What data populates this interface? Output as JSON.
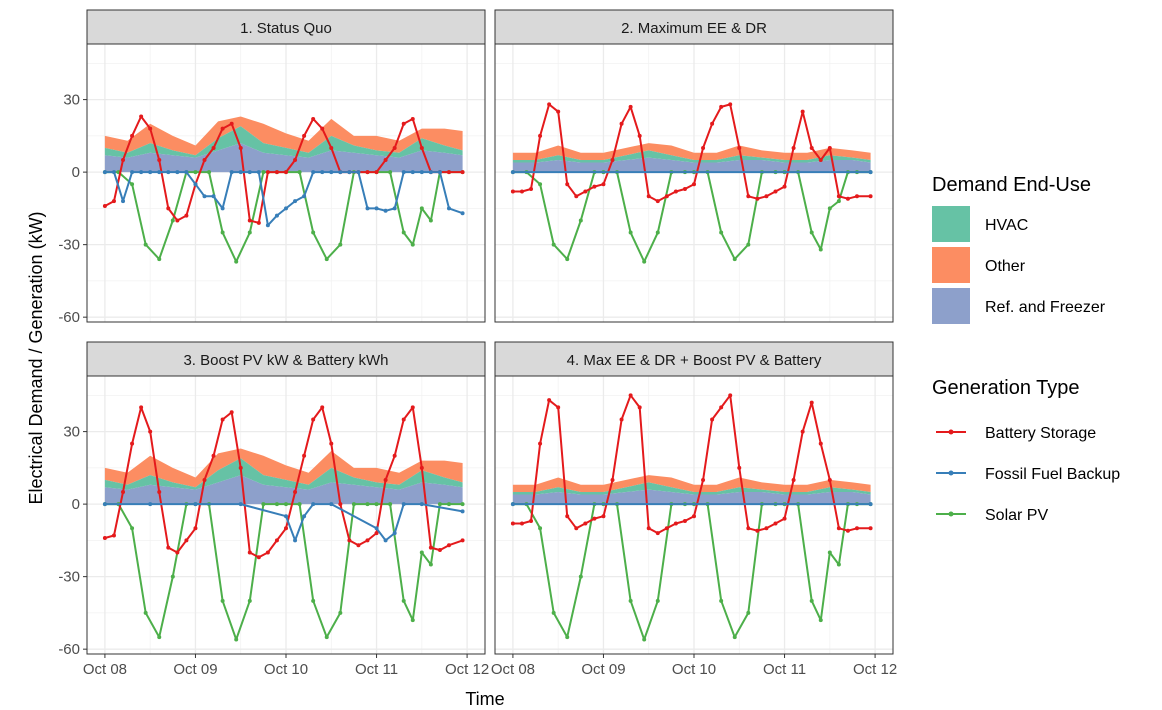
{
  "chart_data": {
    "type": "area",
    "xlabel": "Time",
    "ylabel": "Electrical Demand / Generation (kW)",
    "x_ticks": [
      "Oct 08",
      "Oct 09",
      "Oct 10",
      "Oct 11",
      "Oct 12"
    ],
    "x_range": [
      0,
      4
    ],
    "y_ticks": [
      -60,
      -30,
      0,
      30
    ],
    "ylim": [
      -62,
      53
    ],
    "grid": true,
    "legend_placement": "right",
    "legends": {
      "demand": {
        "title": "Demand End-Use",
        "items": [
          {
            "label": "HVAC",
            "color": "#66C2A5"
          },
          {
            "label": "Other",
            "color": "#FC8D62"
          },
          {
            "label": "Ref. and Freezer",
            "color": "#8DA0CB"
          }
        ]
      },
      "generation": {
        "title": "Generation Type",
        "items": [
          {
            "label": "Battery Storage",
            "color": "#E41A1C"
          },
          {
            "label": "Fossil Fuel Backup",
            "color": "#377EB8"
          },
          {
            "label": "Solar PV",
            "color": "#4DAF4A"
          }
        ]
      }
    },
    "panels": [
      {
        "title": "1. Status Quo",
        "demand": {
          "x": [
            0,
            0.25,
            0.5,
            0.75,
            1,
            1.25,
            1.5,
            1.75,
            2,
            2.25,
            2.5,
            2.75,
            3,
            3.25,
            3.5,
            3.75,
            3.95
          ],
          "ref": [
            7,
            6,
            8,
            7,
            6,
            9,
            12,
            8,
            7,
            6,
            9,
            8,
            7,
            6,
            9,
            8,
            7
          ],
          "hvac": [
            3,
            2,
            4,
            2,
            1,
            5,
            7,
            4,
            3,
            2,
            6,
            3,
            2,
            2,
            5,
            3,
            2
          ],
          "other": [
            5,
            5,
            8,
            6,
            4,
            7,
            4,
            8,
            6,
            5,
            7,
            4,
            6,
            5,
            4,
            7,
            8
          ]
        },
        "solar": {
          "x": [
            0,
            0.15,
            0.3,
            0.45,
            0.6,
            0.75,
            0.9,
            1.0,
            1.15,
            1.3,
            1.45,
            1.6,
            1.75,
            1.9,
            2.0,
            2.15,
            2.3,
            2.45,
            2.6,
            2.75,
            2.9,
            3.0,
            3.15,
            3.3,
            3.4,
            3.5,
            3.6,
            3.7,
            3.8,
            3.95
          ],
          "y": [
            0,
            0,
            -5,
            -30,
            -36,
            -20,
            0,
            0,
            0,
            -25,
            -37,
            -25,
            0,
            0,
            0,
            0,
            -25,
            -36,
            -30,
            0,
            0,
            0,
            0,
            -25,
            -30,
            -15,
            -20,
            0,
            0,
            0
          ]
        },
        "battery": {
          "x": [
            0,
            0.1,
            0.2,
            0.3,
            0.4,
            0.5,
            0.6,
            0.7,
            0.8,
            0.9,
            1.0,
            1.1,
            1.2,
            1.3,
            1.4,
            1.5,
            1.6,
            1.7,
            1.8,
            1.9,
            2.0,
            2.1,
            2.2,
            2.3,
            2.4,
            2.5,
            2.6,
            2.7,
            2.8,
            2.9,
            3.0,
            3.1,
            3.2,
            3.3,
            3.4,
            3.5,
            3.6,
            3.7,
            3.8,
            3.95
          ],
          "y": [
            -14,
            -12,
            5,
            15,
            23,
            18,
            5,
            -15,
            -20,
            -18,
            -5,
            5,
            10,
            18,
            20,
            10,
            -20,
            -21,
            0,
            0,
            0,
            5,
            15,
            22,
            18,
            10,
            0,
            0,
            0,
            0,
            0,
            5,
            10,
            20,
            22,
            10,
            0,
            0,
            0,
            0
          ]
        },
        "fossil": {
          "x": [
            0,
            0.1,
            0.2,
            0.3,
            0.4,
            0.5,
            0.6,
            0.7,
            0.8,
            0.9,
            1.0,
            1.1,
            1.2,
            1.3,
            1.4,
            1.5,
            1.6,
            1.7,
            1.8,
            1.9,
            2.0,
            2.1,
            2.2,
            2.3,
            2.4,
            2.5,
            2.6,
            2.7,
            2.8,
            2.9,
            3.0,
            3.1,
            3.2,
            3.3,
            3.4,
            3.5,
            3.6,
            3.7,
            3.8,
            3.95
          ],
          "y": [
            0,
            0,
            -12,
            0,
            0,
            0,
            0,
            0,
            0,
            0,
            -5,
            -10,
            -10,
            -15,
            0,
            0,
            0,
            0,
            -22,
            -18,
            -15,
            -12,
            -10,
            0,
            0,
            0,
            0,
            0,
            0,
            -15,
            -15,
            -16,
            -15,
            0,
            0,
            0,
            0,
            0,
            -15,
            -17
          ]
        }
      },
      {
        "title": "2. Maximum EE & DR",
        "demand": {
          "x": [
            0,
            0.25,
            0.5,
            0.75,
            1,
            1.25,
            1.5,
            1.75,
            2,
            2.25,
            2.5,
            2.75,
            3,
            3.25,
            3.5,
            3.75,
            3.95
          ],
          "ref": [
            4,
            4,
            5,
            4,
            4,
            5,
            6,
            5,
            4,
            4,
            5,
            5,
            4,
            4,
            5,
            5,
            4
          ],
          "hvac": [
            1,
            1,
            2,
            1,
            1,
            2,
            3,
            2,
            1,
            1,
            2,
            1,
            1,
            1,
            2,
            1,
            1
          ],
          "other": [
            3,
            3,
            4,
            3,
            3,
            3,
            3,
            4,
            3,
            3,
            4,
            3,
            3,
            3,
            3,
            3,
            3
          ]
        },
        "solar": {
          "x": [
            0,
            0.15,
            0.3,
            0.45,
            0.6,
            0.75,
            0.9,
            1.0,
            1.15,
            1.3,
            1.45,
            1.6,
            1.75,
            1.9,
            2.0,
            2.15,
            2.3,
            2.45,
            2.6,
            2.75,
            2.9,
            3.0,
            3.15,
            3.3,
            3.4,
            3.5,
            3.6,
            3.7,
            3.8,
            3.95
          ],
          "y": [
            0,
            0,
            -5,
            -30,
            -36,
            -20,
            0,
            0,
            0,
            -25,
            -37,
            -25,
            0,
            0,
            0,
            0,
            -25,
            -36,
            -30,
            0,
            0,
            0,
            0,
            -25,
            -32,
            -15,
            -12,
            0,
            0,
            0
          ]
        },
        "battery": {
          "x": [
            0,
            0.1,
            0.2,
            0.3,
            0.4,
            0.5,
            0.6,
            0.7,
            0.8,
            0.9,
            1.0,
            1.1,
            1.2,
            1.3,
            1.4,
            1.5,
            1.6,
            1.7,
            1.8,
            1.9,
            2.0,
            2.1,
            2.2,
            2.3,
            2.4,
            2.5,
            2.6,
            2.7,
            2.8,
            2.9,
            3.0,
            3.1,
            3.2,
            3.3,
            3.4,
            3.5,
            3.6,
            3.7,
            3.8,
            3.95
          ],
          "y": [
            -8,
            -8,
            -7,
            15,
            28,
            25,
            -5,
            -10,
            -8,
            -6,
            -5,
            5,
            20,
            27,
            15,
            -10,
            -12,
            -10,
            -8,
            -7,
            -5,
            10,
            20,
            27,
            28,
            10,
            -10,
            -11,
            -10,
            -8,
            -6,
            10,
            25,
            10,
            5,
            10,
            -10,
            -11,
            -10,
            -10
          ]
        },
        "fossil": {
          "x": [
            0,
            3.95
          ],
          "y": [
            0,
            0
          ]
        }
      },
      {
        "title": "3. Boost PV kW & Battery kWh",
        "demand": {
          "x": [
            0,
            0.25,
            0.5,
            0.75,
            1,
            1.25,
            1.5,
            1.75,
            2,
            2.25,
            2.5,
            2.75,
            3,
            3.25,
            3.5,
            3.75,
            3.95
          ],
          "ref": [
            7,
            6,
            8,
            7,
            6,
            9,
            12,
            8,
            7,
            6,
            9,
            8,
            7,
            6,
            9,
            8,
            7
          ],
          "hvac": [
            3,
            2,
            4,
            2,
            1,
            5,
            7,
            4,
            3,
            2,
            6,
            3,
            2,
            2,
            5,
            3,
            2
          ],
          "other": [
            5,
            5,
            8,
            6,
            4,
            7,
            4,
            8,
            6,
            5,
            7,
            4,
            6,
            5,
            4,
            7,
            8
          ]
        },
        "solar": {
          "x": [
            0,
            0.15,
            0.3,
            0.45,
            0.6,
            0.75,
            0.9,
            1.0,
            1.15,
            1.3,
            1.45,
            1.6,
            1.75,
            1.9,
            2.0,
            2.15,
            2.3,
            2.45,
            2.6,
            2.75,
            2.9,
            3.0,
            3.15,
            3.3,
            3.4,
            3.5,
            3.6,
            3.7,
            3.8,
            3.95
          ],
          "y": [
            0,
            0,
            -10,
            -45,
            -55,
            -30,
            0,
            0,
            0,
            -40,
            -56,
            -40,
            0,
            0,
            0,
            0,
            -40,
            -55,
            -45,
            0,
            0,
            0,
            0,
            -40,
            -48,
            -20,
            -25,
            0,
            0,
            0
          ]
        },
        "battery": {
          "x": [
            0,
            0.1,
            0.2,
            0.3,
            0.4,
            0.5,
            0.6,
            0.7,
            0.8,
            0.9,
            1.0,
            1.1,
            1.2,
            1.3,
            1.4,
            1.5,
            1.6,
            1.7,
            1.8,
            1.9,
            2.0,
            2.1,
            2.2,
            2.3,
            2.4,
            2.5,
            2.6,
            2.7,
            2.8,
            2.9,
            3.0,
            3.1,
            3.2,
            3.3,
            3.4,
            3.5,
            3.6,
            3.7,
            3.8,
            3.95
          ],
          "y": [
            -14,
            -13,
            5,
            25,
            40,
            30,
            5,
            -18,
            -20,
            -15,
            -10,
            10,
            20,
            35,
            38,
            15,
            -20,
            -22,
            -20,
            -15,
            -10,
            5,
            20,
            35,
            40,
            25,
            0,
            -15,
            -17,
            -15,
            -12,
            10,
            20,
            35,
            40,
            15,
            -18,
            -19,
            -17,
            -15
          ]
        },
        "fossil": {
          "x": [
            0,
            0.5,
            1.0,
            1.5,
            2.0,
            2.1,
            2.2,
            2.3,
            2.5,
            3.0,
            3.1,
            3.2,
            3.3,
            3.5,
            3.95
          ],
          "y": [
            0,
            0,
            0,
            0,
            -5,
            -15,
            -5,
            0,
            0,
            -10,
            -15,
            -12,
            0,
            0,
            -3
          ]
        }
      },
      {
        "title": "4. Max EE & DR + Boost PV & Battery",
        "demand": {
          "x": [
            0,
            0.25,
            0.5,
            0.75,
            1,
            1.25,
            1.5,
            1.75,
            2,
            2.25,
            2.5,
            2.75,
            3,
            3.25,
            3.5,
            3.75,
            3.95
          ],
          "ref": [
            4,
            4,
            5,
            4,
            4,
            5,
            6,
            5,
            4,
            4,
            5,
            5,
            4,
            4,
            5,
            5,
            4
          ],
          "hvac": [
            1,
            1,
            2,
            1,
            1,
            2,
            3,
            2,
            1,
            1,
            2,
            1,
            1,
            1,
            2,
            1,
            1
          ],
          "other": [
            3,
            3,
            4,
            3,
            3,
            3,
            3,
            4,
            3,
            3,
            4,
            3,
            3,
            3,
            3,
            3,
            3
          ]
        },
        "solar": {
          "x": [
            0,
            0.15,
            0.3,
            0.45,
            0.6,
            0.75,
            0.9,
            1.0,
            1.15,
            1.3,
            1.45,
            1.6,
            1.75,
            1.9,
            2.0,
            2.15,
            2.3,
            2.45,
            2.6,
            2.75,
            2.9,
            3.0,
            3.15,
            3.3,
            3.4,
            3.5,
            3.6,
            3.7,
            3.8,
            3.95
          ],
          "y": [
            0,
            0,
            -10,
            -45,
            -55,
            -30,
            0,
            0,
            0,
            -40,
            -56,
            -40,
            0,
            0,
            0,
            0,
            -40,
            -55,
            -45,
            0,
            0,
            0,
            0,
            -40,
            -48,
            -20,
            -25,
            0,
            0,
            0
          ]
        },
        "battery": {
          "x": [
            0,
            0.1,
            0.2,
            0.3,
            0.4,
            0.5,
            0.6,
            0.7,
            0.8,
            0.9,
            1.0,
            1.1,
            1.2,
            1.3,
            1.4,
            1.5,
            1.6,
            1.7,
            1.8,
            1.9,
            2.0,
            2.1,
            2.2,
            2.3,
            2.4,
            2.5,
            2.6,
            2.7,
            2.8,
            2.9,
            3.0,
            3.1,
            3.2,
            3.3,
            3.4,
            3.5,
            3.6,
            3.7,
            3.8,
            3.95
          ],
          "y": [
            -8,
            -8,
            -7,
            25,
            43,
            40,
            -5,
            -10,
            -8,
            -6,
            -5,
            10,
            35,
            45,
            40,
            -10,
            -12,
            -10,
            -8,
            -7,
            -5,
            10,
            35,
            40,
            45,
            15,
            -10,
            -11,
            -10,
            -8,
            -6,
            10,
            30,
            42,
            25,
            10,
            -10,
            -11,
            -10,
            -10
          ]
        },
        "fossil": {
          "x": [
            0,
            3.95
          ],
          "y": [
            0,
            0
          ]
        }
      }
    ]
  }
}
